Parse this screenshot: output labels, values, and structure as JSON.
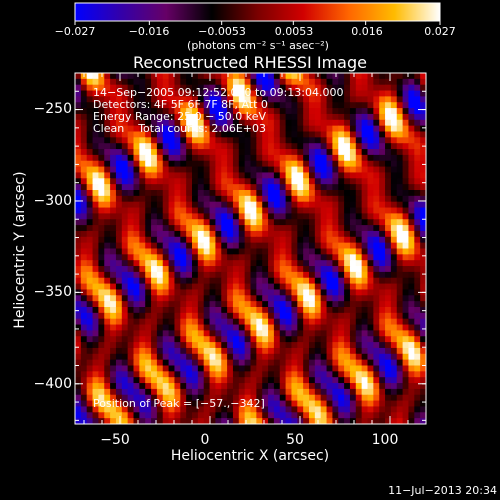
{
  "colorbar": {
    "tick_labels": [
      "−0.027",
      "−0.016",
      "−0.0053",
      "0.0053",
      "0.016",
      "0.027"
    ],
    "tick_values": [
      -0.027,
      -0.016,
      -0.0053,
      0.0053,
      0.016,
      0.027
    ],
    "range": [
      -0.027,
      0.027
    ],
    "unit_label": "(photons cm⁻² s⁻¹ asec⁻²)",
    "colormap": [
      "#0000ff",
      "#3300aa",
      "#660066",
      "#000000",
      "#7a0000",
      "#d10000",
      "#ff6600",
      "#ffbb00",
      "#ffffff"
    ]
  },
  "chart_data": {
    "type": "heatmap",
    "title": "Reconstructed RHESSI Image",
    "xlabel": "Heliocentric X (arcsec)",
    "ylabel": "Heliocentric Y (arcsec)",
    "xlim": [
      -75,
      120
    ],
    "ylim": [
      -422,
      -230
    ],
    "x_ticks": [
      -50,
      0,
      50,
      100
    ],
    "x_tick_labels": [
      "−50",
      "0",
      "50",
      "100"
    ],
    "y_ticks": [
      -250,
      -300,
      -350,
      -400
    ],
    "y_tick_labels": [
      "−250",
      "−300",
      "−350",
      "−400"
    ],
    "annotations": {
      "line1": "14−Sep−2005 09:12:52.000 to 09:13:04.000",
      "line2": "Detectors: 4F 5F 6F 7F 8F, Att 0",
      "line3": "Energy Range: 25.0 − 50.0 keV",
      "line4": "Clean    Total counts: 2.06E+03",
      "peak": "Position of Peak = [−57.,−342]"
    },
    "peak_position": [
      -57,
      -342
    ]
  },
  "footer": {
    "timestamp": "11−Jul−2013 20:34"
  }
}
